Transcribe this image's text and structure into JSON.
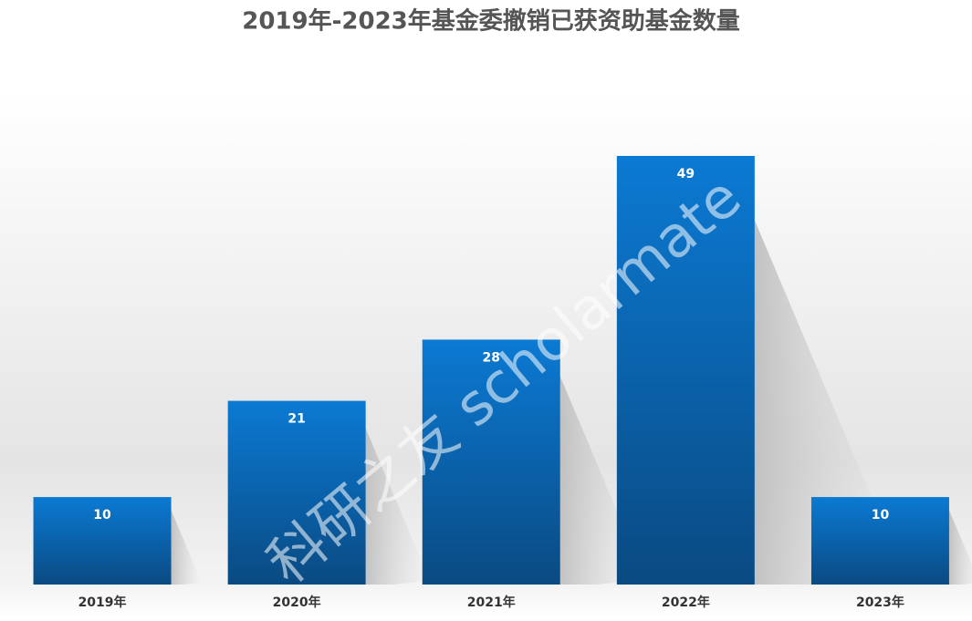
{
  "chart_data": {
    "type": "bar",
    "title": "2019年-2023年基金委撤销已获资助基金数量",
    "categories": [
      "2019年",
      "2020年",
      "2021年",
      "2022年",
      "2023年"
    ],
    "values": [
      10,
      21,
      28,
      49,
      10
    ],
    "color": "#0a6fc2",
    "watermark": "科研之友 scholarmate"
  }
}
